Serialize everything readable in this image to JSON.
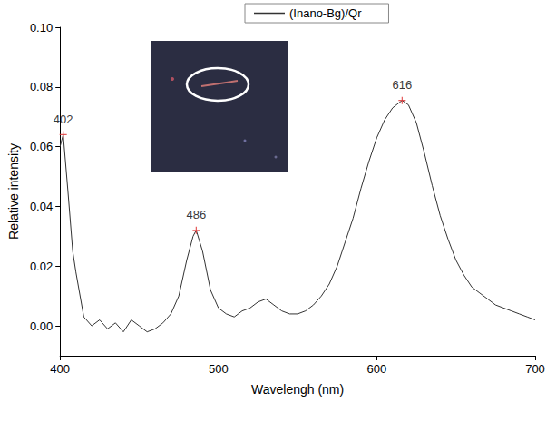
{
  "chart_data": {
    "type": "line",
    "x_label": "Wavelengh (nm)",
    "y_label": "Relative intensity",
    "legend": "top",
    "grid": false,
    "x": [
      400,
      402,
      405,
      408,
      410,
      412,
      415,
      420,
      425,
      430,
      435,
      440,
      445,
      450,
      455,
      460,
      465,
      470,
      475,
      480,
      484,
      486,
      490,
      495,
      500,
      505,
      510,
      515,
      520,
      525,
      530,
      535,
      540,
      545,
      550,
      555,
      560,
      565,
      570,
      575,
      580,
      585,
      590,
      595,
      600,
      605,
      610,
      616,
      620,
      625,
      630,
      635,
      640,
      645,
      650,
      655,
      660,
      665,
      670,
      675,
      680,
      685,
      690,
      695,
      700
    ],
    "series": [
      {
        "name": "(Inano-Bg)/Qr",
        "color": "#333333",
        "values": [
          0.06,
          0.064,
          0.045,
          0.025,
          0.018,
          0.012,
          0.003,
          0.0,
          0.002,
          -0.001,
          0.001,
          -0.002,
          0.002,
          0.0,
          -0.002,
          -0.001,
          0.001,
          0.004,
          0.01,
          0.022,
          0.03,
          0.032,
          0.025,
          0.012,
          0.006,
          0.004,
          0.003,
          0.005,
          0.006,
          0.008,
          0.009,
          0.007,
          0.005,
          0.004,
          0.004,
          0.005,
          0.007,
          0.01,
          0.014,
          0.02,
          0.028,
          0.036,
          0.046,
          0.055,
          0.063,
          0.069,
          0.073,
          0.0755,
          0.074,
          0.068,
          0.058,
          0.047,
          0.037,
          0.029,
          0.022,
          0.017,
          0.013,
          0.011,
          0.009,
          0.007,
          0.006,
          0.005,
          0.004,
          0.003,
          0.002
        ]
      }
    ],
    "annotations": [
      {
        "x": 402,
        "y": 0.064,
        "text": "402"
      },
      {
        "x": 486,
        "y": 0.032,
        "text": "486"
      },
      {
        "x": 616,
        "y": 0.0755,
        "text": "616"
      }
    ],
    "xlim": [
      400,
      700
    ],
    "xticks": [
      400,
      500,
      600,
      700
    ],
    "ylim": [
      -0.01,
      0.1
    ],
    "yticks": [
      {
        "value": 0,
        "label": "0.00"
      },
      {
        "value": 0.02,
        "label": "0.02"
      },
      {
        "value": 0.04,
        "label": "0.04"
      },
      {
        "value": 0.06,
        "label": "0.06"
      },
      {
        "value": 0.08,
        "label": "0.08"
      },
      {
        "value": 0.1,
        "label": "0.10"
      }
    ]
  }
}
